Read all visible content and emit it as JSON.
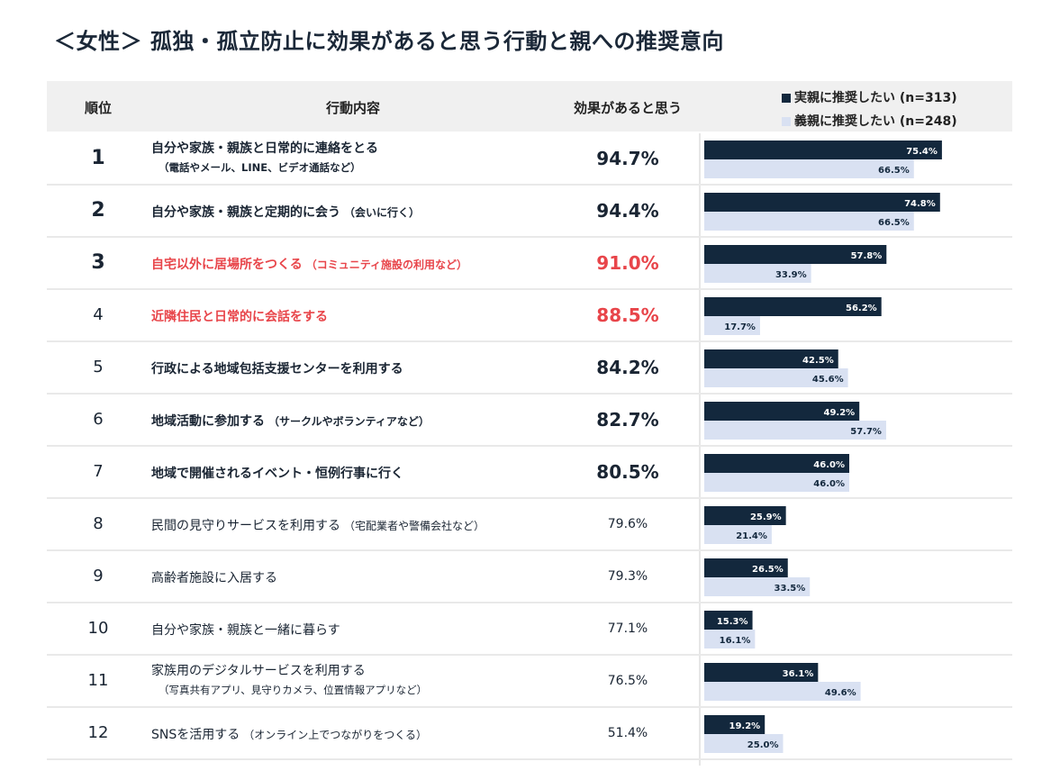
{
  "title": "＜女性＞ 孤独・孤立防止に効果があると思う行動と親への推奨意向",
  "header": {
    "rank": "順位",
    "action": "行動内容",
    "effect": "効果があると思う"
  },
  "colors": {
    "real": "#13283d",
    "inlaw": "#d9e1f2",
    "red": "#e8454a",
    "header_bg": "#f0f0f0"
  },
  "rows": [
    {
      "rank": "1",
      "main": "自分や家族・親族と日常的に連絡をとる",
      "note": "",
      "sub": "（電話やメール、LINE、ビデオ通話など）",
      "effect": "94.7%",
      "style": "bold"
    },
    {
      "rank": "2",
      "main": "自分や家族・親族と定期的に会う",
      "note": "（会いに行く）",
      "sub": "",
      "effect": "94.4%",
      "style": "bold"
    },
    {
      "rank": "3",
      "main": "自宅以外に居場所をつくる",
      "note": "（コミュニティ施設の利用など）",
      "sub": "",
      "effect": "91.0%",
      "style": "red"
    },
    {
      "rank": "4",
      "main": "近隣住民と日常的に会話をする",
      "note": "",
      "sub": "",
      "effect": "88.5%",
      "style": "red"
    },
    {
      "rank": "5",
      "main": "行政による地域包括支援センターを利用する",
      "note": "",
      "sub": "",
      "effect": "84.2%",
      "style": "bold"
    },
    {
      "rank": "6",
      "main": "地域活動に参加する",
      "note": "（サークルやボランティアなど）",
      "sub": "",
      "effect": "82.7%",
      "style": "bold"
    },
    {
      "rank": "7",
      "main": "地域で開催されるイベント・恒例行事に行く",
      "note": "",
      "sub": "",
      "effect": "80.5%",
      "style": "bold"
    },
    {
      "rank": "8",
      "main": "民間の見守りサービスを利用する",
      "note": "（宅配業者や警備会社など）",
      "sub": "",
      "effect": "79.6%",
      "style": "normal"
    },
    {
      "rank": "9",
      "main": "高齢者施設に入居する",
      "note": "",
      "sub": "",
      "effect": "79.3%",
      "style": "normal"
    },
    {
      "rank": "10",
      "main": "自分や家族・親族と一緒に暮らす",
      "note": "",
      "sub": "",
      "effect": "77.1%",
      "style": "normal"
    },
    {
      "rank": "11",
      "main": "家族用のデジタルサービスを利用する",
      "note": "",
      "sub": "（写真共有アプリ、見守りカメラ、位置情報アプリなど）",
      "effect": "76.5%",
      "style": "normal"
    },
    {
      "rank": "12",
      "main": "SNSを活用する",
      "note": "（オンライン上でつながりをつくる）",
      "sub": "",
      "effect": "51.4%",
      "style": "normal"
    }
  ],
  "chart_data": {
    "type": "bar",
    "orientation": "horizontal",
    "title": "＜女性＞ 孤独・孤立防止に効果があると思う行動と親への推奨意向",
    "categories": [
      "自分や家族・親族と日常的に連絡をとる",
      "自分や家族・親族と定期的に会う",
      "自宅以外に居場所をつくる",
      "近隣住民と日常的に会話をする",
      "行政による地域包括支援センターを利用する",
      "地域活動に参加する",
      "地域で開催されるイベント・恒例行事に行く",
      "民間の見守りサービスを利用する",
      "高齢者施設に入居する",
      "自分や家族・親族と一緒に暮らす",
      "家族用のデジタルサービスを利用する",
      "SNSを活用する"
    ],
    "series": [
      {
        "name": "実親に推奨したい (n=313)",
        "values": [
          75.4,
          74.8,
          57.8,
          56.2,
          42.5,
          49.2,
          46.0,
          25.9,
          26.5,
          15.3,
          36.1,
          19.2
        ]
      },
      {
        "name": "義親に推奨したい (n=248)",
        "values": [
          66.5,
          66.5,
          33.9,
          17.7,
          45.6,
          57.7,
          46.0,
          21.4,
          33.5,
          16.1,
          49.6,
          25.0
        ]
      }
    ],
    "unit": "%",
    "legend_position": "top-right",
    "grid": false
  }
}
